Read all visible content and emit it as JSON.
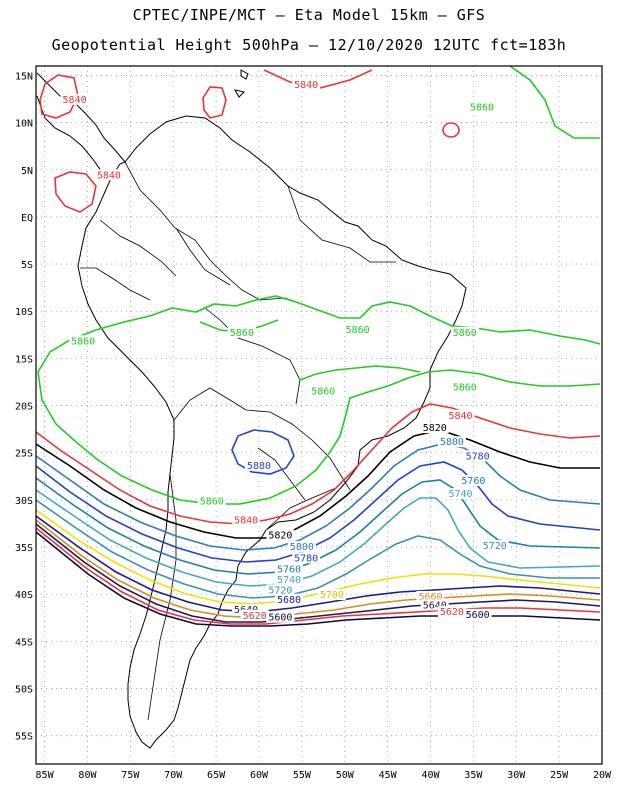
{
  "title": {
    "line1": "CPTEC/INPE/MCT –  Eta Model 15km – GFS",
    "line2": "Geopotential Height 500hPa – 12/10/2020 12UTC fct=183h"
  },
  "map": {
    "lat_labels": [
      "15N",
      "10N",
      "5N",
      "EQ",
      "5S",
      "10S",
      "15S",
      "20S",
      "25S",
      "30S",
      "35S",
      "40S",
      "45S",
      "50S",
      "55S"
    ],
    "lat_values": [
      15,
      10,
      5,
      0,
      -5,
      -10,
      -15,
      -20,
      -25,
      -30,
      -35,
      -40,
      -45,
      -50,
      -55
    ],
    "lon_labels": [
      "85W",
      "80W",
      "75W",
      "70W",
      "65W",
      "60W",
      "55W",
      "50W",
      "45W",
      "40W",
      "35W",
      "30W",
      "25W",
      "20W"
    ],
    "lon_values": [
      -85,
      -80,
      -75,
      -70,
      -65,
      -60,
      -55,
      -50,
      -45,
      -40,
      -35,
      -30,
      -25,
      -20
    ],
    "extent": {
      "lon_min": -86,
      "lon_max": -20,
      "lat_min": -58,
      "lat_max": 16
    }
  },
  "contours": {
    "colors": {
      "5860": "#22cc22",
      "5880": "#2244dd",
      "5840": "#ee3333",
      "5820": "#000000",
      "5800": "#2e7db8",
      "5780": "#1f3fd6",
      "5760": "#1e7fa6",
      "5740": "#41a8c8",
      "5720": "#3f8fb0",
      "5700": "#f2e100",
      "5680": "#1a1a8c",
      "5660": "#e08a1e",
      "5640": "#1a1a5e",
      "5620": "#ee3333",
      "5600": "#0a0a40"
    },
    "labels": [
      {
        "text": "5840",
        "color": "#ee3333",
        "lon": -81.5,
        "lat": 12.2
      },
      {
        "text": "5840",
        "color": "#ee3333",
        "lon": -77.5,
        "lat": 4.2
      },
      {
        "text": "5840",
        "color": "#ee3333",
        "lon": -54.5,
        "lat": 13.8
      },
      {
        "text": "5860",
        "color": "#22cc22",
        "lon": -34,
        "lat": 11.4
      },
      {
        "text": "5860",
        "color": "#22cc22",
        "lon": -80.5,
        "lat": -13.4
      },
      {
        "text": "5860",
        "color": "#22cc22",
        "lon": -62,
        "lat": -12.5
      },
      {
        "text": "5860",
        "color": "#22cc22",
        "lon": -48.5,
        "lat": -12.2
      },
      {
        "text": "5860",
        "color": "#22cc22",
        "lon": -36,
        "lat": -12.5
      },
      {
        "text": "5860",
        "color": "#22cc22",
        "lon": -52.5,
        "lat": -18.7
      },
      {
        "text": "5860",
        "color": "#22cc22",
        "lon": -36,
        "lat": -18.3
      },
      {
        "text": "5860",
        "color": "#22cc22",
        "lon": -65.5,
        "lat": -30.4
      },
      {
        "text": "5880",
        "color": "#2244dd",
        "lon": -60,
        "lat": -26.6
      },
      {
        "text": "5840",
        "color": "#ee3333",
        "lon": -36.5,
        "lat": -21.3
      },
      {
        "text": "5840",
        "color": "#ee3333",
        "lon": -61.5,
        "lat": -32.4
      },
      {
        "text": "5820",
        "color": "#000000",
        "lon": -39.5,
        "lat": -22.6
      },
      {
        "text": "5820",
        "color": "#000000",
        "lon": -57.5,
        "lat": -34.0
      },
      {
        "text": "5800",
        "color": "#2e7db8",
        "lon": -37.5,
        "lat": -24.1
      },
      {
        "text": "5800",
        "color": "#2e7db8",
        "lon": -55,
        "lat": -35.2
      },
      {
        "text": "5780",
        "color": "#1f3fd6",
        "lon": -34.5,
        "lat": -25.6
      },
      {
        "text": "5780",
        "color": "#1f3fd6",
        "lon": -54.5,
        "lat": -36.4
      },
      {
        "text": "5760",
        "color": "#1e7fa6",
        "lon": -35,
        "lat": -28.2
      },
      {
        "text": "5760",
        "color": "#1e7fa6",
        "lon": -56.5,
        "lat": -37.6
      },
      {
        "text": "5740",
        "color": "#41a8c8",
        "lon": -36.5,
        "lat": -29.6
      },
      {
        "text": "5740",
        "color": "#41a8c8",
        "lon": -56.5,
        "lat": -38.7
      },
      {
        "text": "5720",
        "color": "#3f8fb0",
        "lon": -32.5,
        "lat": -35.1
      },
      {
        "text": "5720",
        "color": "#3f8fb0",
        "lon": -57.5,
        "lat": -39.8
      },
      {
        "text": "5700",
        "color": "#d8c600",
        "lon": -51.5,
        "lat": -40.3
      },
      {
        "text": "5680",
        "color": "#1a1a8c",
        "lon": -56.5,
        "lat": -40.8
      },
      {
        "text": "5660",
        "color": "#e08a1e",
        "lon": -40,
        "lat": -40.5
      },
      {
        "text": "5640",
        "color": "#1a1a5e",
        "lon": -61.5,
        "lat": -41.9
      },
      {
        "text": "5640",
        "color": "#1a1a5e",
        "lon": -39.5,
        "lat": -41.4
      },
      {
        "text": "5620",
        "color": "#ee3333",
        "lon": -60.5,
        "lat": -42.5
      },
      {
        "text": "5620",
        "color": "#ee3333",
        "lon": -37.5,
        "lat": -42.1
      },
      {
        "text": "5600",
        "color": "#0a0a40",
        "lon": -57.5,
        "lat": -42.7
      },
      {
        "text": "5600",
        "color": "#0a0a40",
        "lon": -34.5,
        "lat": -42.4
      }
    ]
  }
}
